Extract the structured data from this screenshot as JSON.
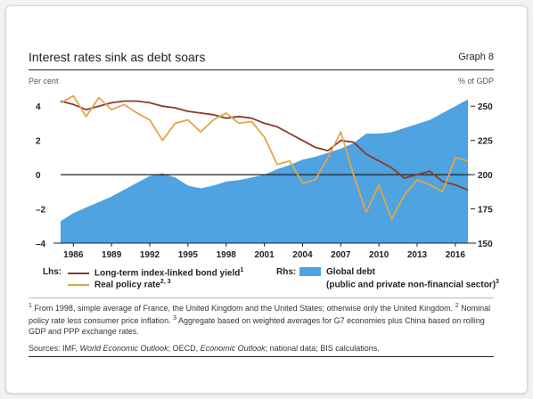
{
  "header": {
    "title": "Interest rates sink as debt soars",
    "graph_number": "Graph 8",
    "unit_left": "Per cent",
    "unit_right": "% of GDP"
  },
  "legend": {
    "lhs_label": "Lhs:",
    "rhs_label": "Rhs:",
    "bond_yield": "Long-term index-linked bond yield",
    "bond_yield_note": "1",
    "policy_rate": "Real policy rate",
    "policy_rate_note": "2, 3",
    "global_debt": "Global debt",
    "global_debt_sub": "(public and private non-financial sector)",
    "global_debt_note": "3"
  },
  "footnotes": {
    "n1_mark": "1",
    "n1_text": "From 1998, simple average of France, the United Kingdom and the United States; otherwise only the United Kingdom.",
    "n2_mark": "2",
    "n2_text": "Nominal policy rate less consumer price inflation.",
    "n3_mark": "3",
    "n3_text": "Aggregate based on weighted averages for G7 economies plus China based on rolling GDP and PPP exchange rates."
  },
  "sources": {
    "label": "Sources: IMF,",
    "weo": "World Economic Outlook",
    "sep1": "; OECD,",
    "eo": "Economic Outlook",
    "rest": "; national data; BIS calculations."
  },
  "colors": {
    "bond_yield": "#8b3a2b",
    "policy_rate": "#e0a64a",
    "global_debt": "#4ea3e0"
  },
  "chart_data": {
    "type": "line",
    "title": "Interest rates sink as debt soars",
    "x_ticks": [
      "1986",
      "1989",
      "1992",
      "1995",
      "1998",
      "2001",
      "2004",
      "2007",
      "2010",
      "2013",
      "2016"
    ],
    "xlim": [
      1985,
      2017.2
    ],
    "left_axis": {
      "label": "Per cent",
      "ticks": [
        "4",
        "2",
        "0",
        "–2",
        "–4"
      ],
      "ylim": [
        -4,
        5
      ]
    },
    "right_axis": {
      "label": "% of GDP",
      "ticks": [
        "250",
        "225",
        "200",
        "175",
        "150"
      ],
      "ylim": [
        150,
        262.5
      ]
    },
    "zero_line": 0,
    "series": [
      {
        "name": "Global debt",
        "axis": "right",
        "style": "area",
        "x": [
          1985,
          1986,
          1987,
          1988,
          1989,
          1990,
          1991,
          1992,
          1993,
          1994,
          1995,
          1996,
          1997,
          1998,
          1999,
          2000,
          2001,
          2002,
          2003,
          2004,
          2005,
          2006,
          2007,
          2008,
          2009,
          2010,
          2011,
          2012,
          2013,
          2014,
          2015,
          2016,
          2017
        ],
        "y": [
          166,
          172,
          176,
          180,
          184,
          189,
          194,
          199,
          201,
          198,
          192,
          190,
          192,
          195,
          196,
          198,
          200,
          204,
          207,
          211,
          213,
          216,
          219,
          223,
          230,
          230,
          231,
          234,
          237,
          240,
          245,
          250,
          255
        ]
      },
      {
        "name": "Long-term index-linked bond yield",
        "axis": "left",
        "style": "line",
        "x": [
          1985,
          1986,
          1987,
          1988,
          1989,
          1990,
          1991,
          1992,
          1993,
          1994,
          1995,
          1996,
          1997,
          1998,
          1999,
          2000,
          2001,
          2002,
          2003,
          2004,
          2005,
          2006,
          2007,
          2008,
          2009,
          2010,
          2011,
          2012,
          2013,
          2014,
          2015,
          2016,
          2017
        ],
        "y": [
          4.3,
          4.1,
          3.8,
          4.0,
          4.2,
          4.3,
          4.3,
          4.2,
          4.0,
          3.9,
          3.7,
          3.6,
          3.5,
          3.3,
          3.4,
          3.3,
          3.0,
          2.8,
          2.4,
          2.0,
          1.6,
          1.4,
          2.0,
          1.9,
          1.2,
          0.8,
          0.4,
          -0.2,
          0.0,
          0.2,
          -0.4,
          -0.6,
          -0.9
        ]
      },
      {
        "name": "Real policy rate",
        "axis": "left",
        "style": "line",
        "x": [
          1985,
          1986,
          1987,
          1988,
          1989,
          1990,
          1991,
          1992,
          1993,
          1994,
          1995,
          1996,
          1997,
          1998,
          1999,
          2000,
          2001,
          2002,
          2003,
          2004,
          2005,
          2006,
          2007,
          2008,
          2009,
          2010,
          2011,
          2012,
          2013,
          2014,
          2015,
          2016,
          2017
        ],
        "y": [
          4.2,
          4.6,
          3.4,
          4.5,
          3.8,
          4.1,
          3.6,
          3.2,
          2.0,
          3.0,
          3.2,
          2.5,
          3.2,
          3.6,
          3.0,
          3.1,
          2.2,
          0.6,
          0.8,
          -0.5,
          -0.3,
          1.0,
          2.5,
          0.0,
          -2.2,
          -0.6,
          -2.6,
          -1.2,
          -0.3,
          -0.6,
          -1.0,
          1.0,
          0.8
        ]
      }
    ]
  }
}
